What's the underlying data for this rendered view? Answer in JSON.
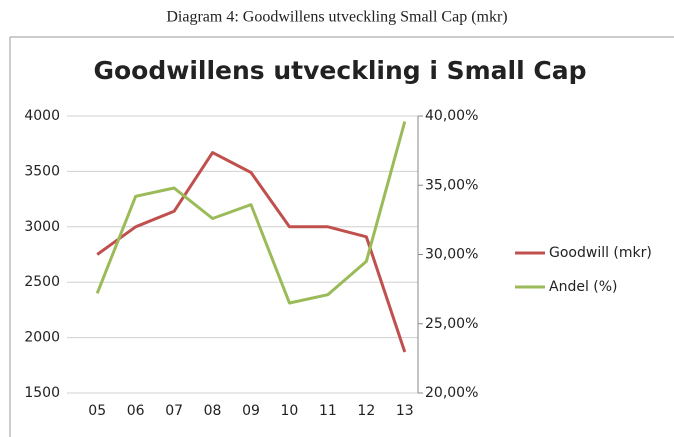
{
  "caption": "Diagram 4: Goodwillens utveckling Small Cap (mkr)",
  "chart_data": {
    "type": "line",
    "title": "Goodwillens utveckling i Small Cap",
    "categories": [
      "05",
      "06",
      "07",
      "08",
      "09",
      "10",
      "11",
      "12",
      "13"
    ],
    "series": [
      {
        "name": "Goodwill (mkr)",
        "color": "#c0504d",
        "values": [
          2750,
          3000,
          3140,
          3670,
          3490,
          3000,
          3000,
          2910,
          1870
        ]
      },
      {
        "name": "Andel (%)",
        "color": "#9bbb59",
        "axis": "y2",
        "values": [
          27.2,
          34.2,
          34.8,
          32.6,
          33.6,
          26.5,
          27.1,
          29.5,
          39.6
        ]
      }
    ],
    "ylim": [
      1500,
      4000
    ],
    "yticks": [
      1500,
      2000,
      2500,
      3000,
      3500,
      4000
    ],
    "y2lim": [
      20,
      40
    ],
    "y2ticks": [
      {
        "value": 20,
        "label": "20,00%"
      },
      {
        "value": 25,
        "label": "25,00%"
      },
      {
        "value": 30,
        "label": "30,00%"
      },
      {
        "value": 35,
        "label": "35,00%"
      },
      {
        "value": 40,
        "label": "40,00%"
      }
    ],
    "grid": true,
    "legend": "right"
  }
}
